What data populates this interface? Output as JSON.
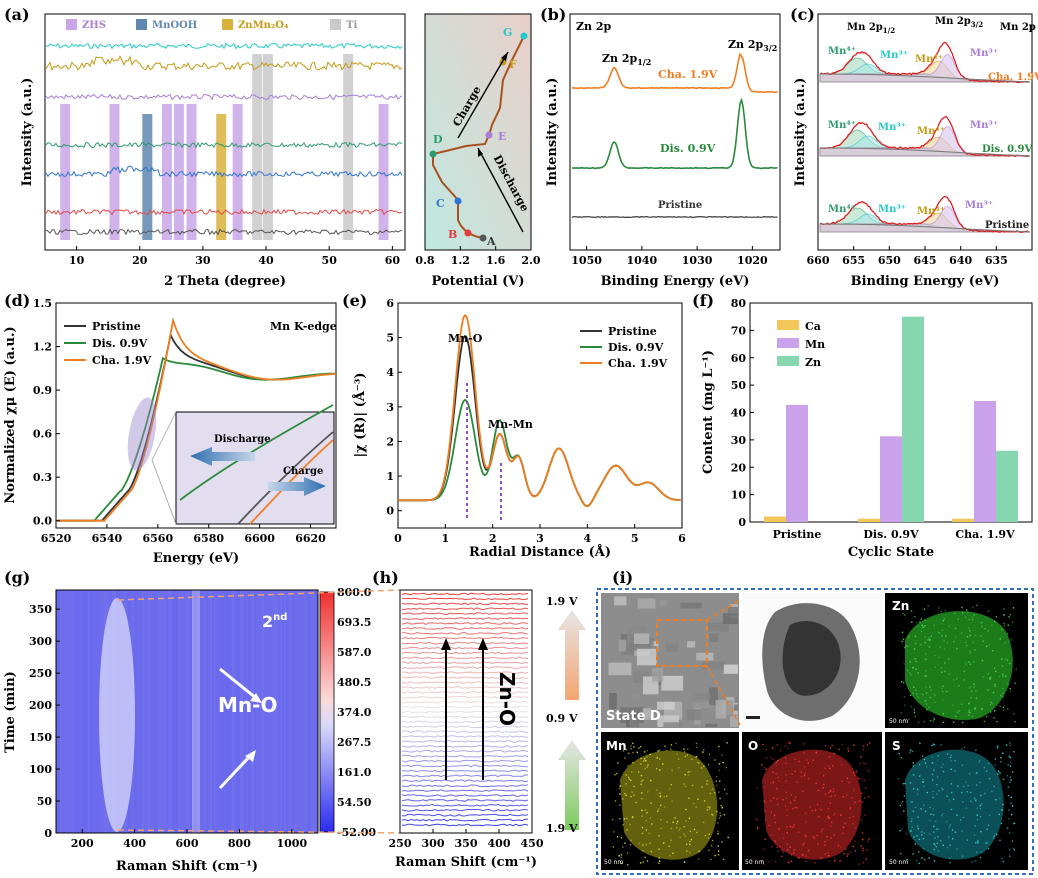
{
  "panels": {
    "a": {
      "label": "(a)",
      "ylabel": "Intensity (a.u.)",
      "xlabel": "2 Theta (degree)",
      "legend": [
        "ZHS",
        "MnOOH",
        "ZnMn₂O₄",
        "Ti"
      ],
      "legend_colors": [
        "#c8a6e6",
        "#5f88b0",
        "#d9b23c",
        "#c9c9c9"
      ]
    },
    "a2": {
      "xlabel": "Potential (V)",
      "points": [
        "A",
        "B",
        "C",
        "D",
        "E",
        "F",
        "G"
      ],
      "charge": "Charge",
      "discharge": "Discharge"
    },
    "b": {
      "label": "(b)",
      "title": "Zn 2p",
      "ylabel": "Intensity (a.u.)",
      "xlabel": "Binding Energy (eV)",
      "peak1": "Zn 2p",
      "peak1_sub": "1/2",
      "peak2": "Zn 2p",
      "peak2_sub": "3/2",
      "labels": [
        "Cha. 1.9V",
        "Dis. 0.9V",
        "Pristine"
      ]
    },
    "c": {
      "label": "(c)",
      "title": "Mn 2p",
      "ylabel": "Intensity (a.u.)",
      "xlabel": "Binding Energy (eV)",
      "peak1": "Mn 2p",
      "peak1_sub": "1/2",
      "peak2": "Mn 2p",
      "peak2_sub": "3/2",
      "states": [
        "Cha. 1.9V",
        "Dis. 0.9V",
        "Pristine"
      ],
      "species": [
        "Mn⁴⁺",
        "Mn³⁺"
      ]
    },
    "d": {
      "label": "(d)",
      "title": "Mn K-edge",
      "ylabel": "Normalized χμ (E) (a.u.)",
      "xlabel": "Energy (eV)",
      "legend": [
        "Pristine",
        "Dis. 0.9V",
        "Cha. 1.9V"
      ],
      "inset_discharge": "Discharge",
      "inset_charge": "Charge"
    },
    "e": {
      "label": "(e)",
      "ylabel": "|χ (R)| (Å⁻³)",
      "xlabel": "Radial Distance (Å)",
      "legend": [
        "Pristine",
        "Dis. 0.9V",
        "Cha. 1.9V"
      ],
      "ann1": "Mn-O",
      "ann2": "Mn-Mn"
    },
    "f": {
      "label": "(f)",
      "ylabel": "Content (mg L⁻¹)",
      "xlabel": "Cyclic State"
    },
    "g": {
      "label": "(g)",
      "ylabel": "Time (min)",
      "xlabel": "Raman Shift (cm⁻¹)",
      "cycle": "2",
      "cycle_sup": "nd",
      "ann": "Mn-O",
      "colorbar": [
        "800.0",
        "693.5",
        "587.0",
        "480.5",
        "374.0",
        "267.5",
        "161.0",
        "54.50",
        "-52.00"
      ]
    },
    "h": {
      "label": "(h)",
      "xlabel": "Raman Shift (cm⁻¹)",
      "ann": "Zn-O",
      "v_top": "1.9 V",
      "v_mid": "0.9 V",
      "v_bot": "1.9 V"
    },
    "i": {
      "label": "(i)",
      "state": "State D",
      "maps": [
        "Zn",
        "Mn",
        "O",
        "S"
      ],
      "scale": "50 nm"
    }
  },
  "chart_data": [
    {
      "panel": "a",
      "type": "line",
      "title": "",
      "xlabel": "2 Theta (degree)",
      "ylabel": "Intensity (a.u.)",
      "xlim": [
        5,
        62
      ],
      "xticks": [
        10,
        20,
        30,
        40,
        50,
        60
      ],
      "series_count": 8,
      "series_colors": [
        "#26c9c9",
        "#c59a15",
        "#a97ed6",
        "#2e9b6e",
        "#2f74d0",
        "#e34848",
        "#555555",
        "#555555"
      ],
      "bands": {
        "ZHS": [
          8.2,
          16.0,
          24.3,
          26.2,
          28.2,
          35.5,
          58.6
        ],
        "MnOOH": [
          21.2
        ],
        "ZnMn2O4": [
          32.9
        ],
        "Ti": [
          38.6,
          40.3,
          53.0
        ]
      }
    },
    {
      "panel": "a2",
      "type": "line",
      "xlabel": "Potential (V)",
      "xlim": [
        0.8,
        2.0
      ],
      "xticks": [
        0.8,
        1.2,
        1.6,
        2.0
      ],
      "points": [
        {
          "name": "A",
          "x": 1.48
        },
        {
          "name": "B",
          "x": 1.26
        },
        {
          "name": "C",
          "x": 1.24
        },
        {
          "name": "D",
          "x": 0.9
        },
        {
          "name": "E",
          "x": 1.53
        },
        {
          "name": "F",
          "x": 1.72
        },
        {
          "name": "G",
          "x": 1.95
        }
      ]
    },
    {
      "panel": "b",
      "type": "line",
      "xlabel": "Binding Energy (eV)",
      "ylabel": "Intensity (a.u.)",
      "xlim": [
        1053,
        1015
      ],
      "xticks": [
        1050,
        1040,
        1030,
        1020
      ],
      "series": [
        {
          "name": "Cha. 1.9V",
          "peaks": [
            1045.0,
            1022.0
          ]
        },
        {
          "name": "Dis. 0.9V",
          "peaks": [
            1045.0,
            1022.0
          ]
        },
        {
          "name": "Pristine",
          "peaks": []
        }
      ]
    },
    {
      "panel": "c",
      "type": "line",
      "xlabel": "Binding Energy (eV)",
      "ylabel": "Intensity (a.u.)",
      "xlim": [
        660,
        630
      ],
      "xticks": [
        660,
        655,
        650,
        645,
        640,
        635
      ],
      "series": [
        {
          "name": "Cha. 1.9V"
        },
        {
          "name": "Dis. 0.9V"
        },
        {
          "name": "Pristine"
        }
      ]
    },
    {
      "panel": "d",
      "type": "line",
      "xlabel": "Energy (eV)",
      "ylabel": "Normalized χμ (E) (a.u.)",
      "xlim": [
        6520,
        6630
      ],
      "ylim": [
        -0.05,
        1.5
      ],
      "xticks": [
        6520,
        6540,
        6560,
        6580,
        6600,
        6620
      ],
      "yticks": [
        0.0,
        0.3,
        0.6,
        0.9,
        1.2,
        1.5
      ],
      "series": [
        {
          "name": "Pristine",
          "color": "#333333",
          "peak": [
            6565,
            1.28
          ]
        },
        {
          "name": "Dis. 0.9V",
          "color": "#2a8a3b",
          "peak": [
            6562,
            1.12
          ]
        },
        {
          "name": "Cha. 1.9V",
          "color": "#ef7d22",
          "peak": [
            6565,
            1.38
          ]
        }
      ]
    },
    {
      "panel": "e",
      "type": "line",
      "xlabel": "Radial Distance (Å)",
      "ylabel": "|χ (R)| (Å⁻³)",
      "xlim": [
        0,
        6
      ],
      "ylim": [
        -0.5,
        6
      ],
      "xticks": [
        0,
        1,
        2,
        3,
        4,
        5,
        6
      ],
      "yticks": [
        0,
        1,
        2,
        3,
        4,
        5,
        6
      ],
      "series": [
        {
          "name": "Pristine",
          "color": "#333333",
          "peak_mno": 4.75,
          "peak_mnmn": 1.9
        },
        {
          "name": "Dis. 0.9V",
          "color": "#2a8a3b",
          "peak_mno": 2.9,
          "peak_mnmn": 2.3
        },
        {
          "name": "Cha. 1.9V",
          "color": "#ef7d22",
          "peak_mno": 5.35,
          "peak_mnmn": 1.9
        }
      ]
    },
    {
      "panel": "f",
      "type": "bar",
      "xlabel": "Cyclic State",
      "ylabel": "Content (mg L⁻¹)",
      "ylim": [
        0,
        80
      ],
      "yticks": [
        0,
        10,
        20,
        30,
        40,
        50,
        60,
        70,
        80
      ],
      "categories": [
        "Pristine",
        "Dis. 0.9V",
        "Cha. 1.9V"
      ],
      "series": [
        {
          "name": "Ca",
          "color": "#f3c65a",
          "values": [
            2.0,
            1.2,
            1.2
          ]
        },
        {
          "name": "Mn",
          "color": "#caa2ec",
          "values": [
            42.8,
            31.3,
            44.2
          ]
        },
        {
          "name": "Zn",
          "color": "#86d6b0",
          "values": [
            0.0,
            75.0,
            26.0
          ]
        }
      ]
    },
    {
      "panel": "g",
      "type": "heatmap",
      "xlabel": "Raman Shift (cm⁻¹)",
      "ylabel": "Time (min)",
      "xlim": [
        100,
        1100
      ],
      "ylim": [
        0,
        380
      ],
      "xticks": [
        200,
        400,
        600,
        800,
        1000
      ],
      "yticks": [
        0,
        50,
        100,
        150,
        200,
        250,
        300,
        350
      ]
    },
    {
      "panel": "h",
      "type": "line",
      "xlabel": "Raman Shift (cm⁻¹)",
      "xlim": [
        250,
        450
      ],
      "xticks": [
        250,
        300,
        350,
        400,
        450
      ]
    }
  ]
}
